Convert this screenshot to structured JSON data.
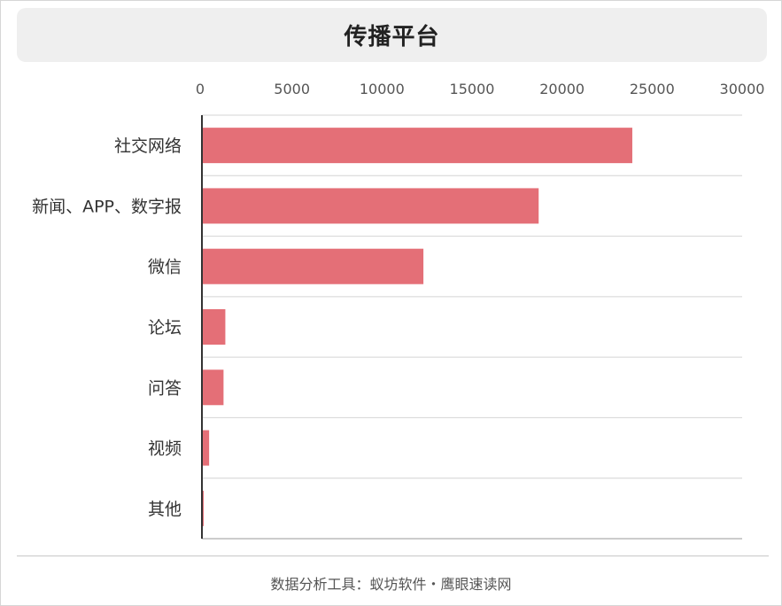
{
  "chart_data": {
    "type": "bar",
    "orientation": "horizontal",
    "title": "传播平台",
    "categories": [
      "社交网络",
      "新闻、APP、数字报",
      "微信",
      "论坛",
      "问答",
      "视频",
      "其他"
    ],
    "values": [
      23900,
      18700,
      12300,
      1300,
      1200,
      400,
      100
    ],
    "xlim": [
      0,
      30000
    ],
    "xticks": [
      "0",
      "5000",
      "10000",
      "15000",
      "20000",
      "25000",
      "30000"
    ],
    "x_axis_position": "top",
    "grid": "horizontal separators between categories",
    "bar_color": "#e46f77",
    "legend": "none"
  },
  "footer": {
    "text": "数据分析工具：蚁坊软件・鹰眼速读网"
  }
}
